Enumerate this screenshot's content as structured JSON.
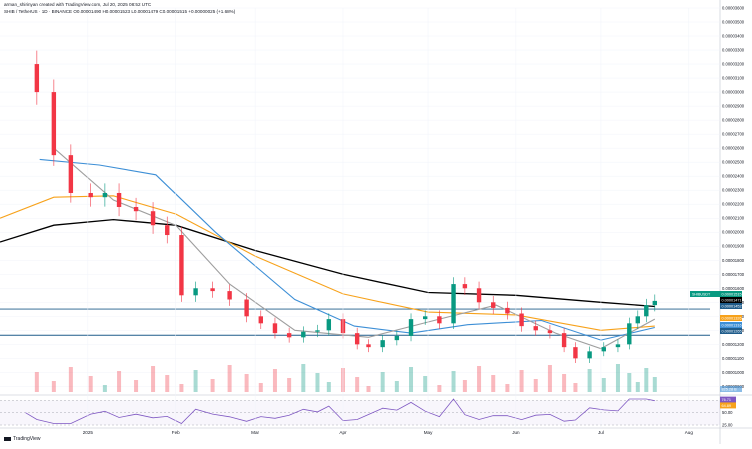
{
  "header": {
    "line1": "arman_shirinyan created with TradingView.com, Jul 20, 2025 08:52 UTC",
    "line2": "SHIB / TetherUS · 1D · BINANCE  O0.00001490 H0.00001523 L0.00001479 C0.00001515 +0.00000025 (+1.68%)"
  },
  "brand": "TradingView",
  "colors": {
    "up": "#089981",
    "down": "#F23645",
    "sma_black": "#000000",
    "sma_orange": "#F7A21B",
    "sma_blue": "#3D8FD6",
    "sma_gray": "#9E9E9E",
    "hline": "#1E5B8A",
    "rsi": "#7E57C2"
  },
  "price_axis": {
    "ticks": [
      "0.00003600",
      "0.00003500",
      "0.00003400",
      "0.00003300",
      "0.00003200",
      "0.00003100",
      "0.00003000",
      "0.00002900",
      "0.00002800",
      "0.00002700",
      "0.00002600",
      "0.00002500",
      "0.00002400",
      "0.00002300",
      "0.00002200",
      "0.00002100",
      "0.00002000",
      "0.00001900",
      "0.00001800",
      "0.00001700",
      "0.00001600",
      "0.00001500",
      "0.00001400",
      "0.00001300",
      "0.00001200",
      "0.00001100",
      "0.00001000",
      "0.00000900"
    ],
    "badges": [
      {
        "text": "SHIBUSDT",
        "value": "0.00001515",
        "color": "#089981"
      },
      {
        "text": "",
        "value": "0.00001471",
        "color": "#000000"
      },
      {
        "text": "",
        "value": "0.00001452",
        "color": "#1E5B8A"
      },
      {
        "text": "",
        "value": "0.00001326",
        "color": "#F7A21B"
      },
      {
        "text": "",
        "value": "0.00001316",
        "color": "#3D8FD6"
      },
      {
        "text": "",
        "value": "0.00001265",
        "color": "#1E5B8A"
      }
    ],
    "volume_badge": "825.28 B"
  },
  "rsi_axis": {
    "ticks": [
      "75.00",
      "50.00",
      "25.00"
    ],
    "badges": [
      {
        "value": "76.71",
        "color": "#7E57C2"
      },
      {
        "value": "64.89",
        "color": "#F7A21B"
      }
    ]
  },
  "time_axis": [
    "2025",
    "Feb",
    "Mar",
    "Apr",
    "May",
    "Jun",
    "Jul",
    "Aug"
  ],
  "chart_data": {
    "type": "candlestick",
    "symbol": "SHIB / TetherUS",
    "interval": "1D",
    "exchange": "BINANCE",
    "ohlc_last": {
      "open": 1.49e-05,
      "high": 1.523e-05,
      "low": 1.479e-05,
      "close": 1.515e-05
    },
    "y_range": [
      8.6e-06,
      3.6e-05
    ],
    "close_series": [
      {
        "date": "2024-12-10",
        "close": 3.2e-05
      },
      {
        "date": "2024-12-14",
        "close": 3e-05
      },
      {
        "date": "2024-12-20",
        "close": 2.55e-05
      },
      {
        "date": "2024-12-26",
        "close": 2.28e-05
      },
      {
        "date": "2025-01-02",
        "close": 2.25e-05
      },
      {
        "date": "2025-01-07",
        "close": 2.28e-05
      },
      {
        "date": "2025-01-12",
        "close": 2.18e-05
      },
      {
        "date": "2025-01-18",
        "close": 2.15e-05
      },
      {
        "date": "2025-01-24",
        "close": 2.05e-05
      },
      {
        "date": "2025-01-29",
        "close": 1.98e-05
      },
      {
        "date": "2025-02-03",
        "close": 1.55e-05
      },
      {
        "date": "2025-02-08",
        "close": 1.6e-05
      },
      {
        "date": "2025-02-14",
        "close": 1.58e-05
      },
      {
        "date": "2025-02-20",
        "close": 1.52e-05
      },
      {
        "date": "2025-02-26",
        "close": 1.4e-05
      },
      {
        "date": "2025-03-03",
        "close": 1.35e-05
      },
      {
        "date": "2025-03-08",
        "close": 1.28e-05
      },
      {
        "date": "2025-03-13",
        "close": 1.25e-05
      },
      {
        "date": "2025-03-18",
        "close": 1.29e-05
      },
      {
        "date": "2025-03-23",
        "close": 1.3e-05
      },
      {
        "date": "2025-03-27",
        "close": 1.38e-05
      },
      {
        "date": "2025-04-01",
        "close": 1.28e-05
      },
      {
        "date": "2025-04-06",
        "close": 1.2e-05
      },
      {
        "date": "2025-04-10",
        "close": 1.18e-05
      },
      {
        "date": "2025-04-15",
        "close": 1.23e-05
      },
      {
        "date": "2025-04-20",
        "close": 1.26e-05
      },
      {
        "date": "2025-04-25",
        "close": 1.38e-05
      },
      {
        "date": "2025-04-30",
        "close": 1.4e-05
      },
      {
        "date": "2025-05-05",
        "close": 1.35e-05
      },
      {
        "date": "2025-05-10",
        "close": 1.63e-05
      },
      {
        "date": "2025-05-14",
        "close": 1.6e-05
      },
      {
        "date": "2025-05-19",
        "close": 1.5e-05
      },
      {
        "date": "2025-05-24",
        "close": 1.46e-05
      },
      {
        "date": "2025-05-29",
        "close": 1.42e-05
      },
      {
        "date": "2025-06-03",
        "close": 1.33e-05
      },
      {
        "date": "2025-06-08",
        "close": 1.3e-05
      },
      {
        "date": "2025-06-13",
        "close": 1.28e-05
      },
      {
        "date": "2025-06-18",
        "close": 1.18e-05
      },
      {
        "date": "2025-06-22",
        "close": 1.1e-05
      },
      {
        "date": "2025-06-27",
        "close": 1.15e-05
      },
      {
        "date": "2025-07-02",
        "close": 1.18e-05
      },
      {
        "date": "2025-07-07",
        "close": 1.2e-05
      },
      {
        "date": "2025-07-11",
        "close": 1.35e-05
      },
      {
        "date": "2025-07-14",
        "close": 1.4e-05
      },
      {
        "date": "2025-07-17",
        "close": 1.48e-05
      },
      {
        "date": "2025-07-20",
        "close": 1.51e-05
      }
    ],
    "moving_averages": [
      {
        "color": "#000000",
        "points": [
          [
            "2024-12-01",
            1.93e-05
          ],
          [
            "2024-12-20",
            2.05e-05
          ],
          [
            "2025-01-10",
            2.09e-05
          ],
          [
            "2025-02-01",
            2.05e-05
          ],
          [
            "2025-03-01",
            1.87e-05
          ],
          [
            "2025-04-01",
            1.7e-05
          ],
          [
            "2025-05-01",
            1.57e-05
          ],
          [
            "2025-06-01",
            1.55e-05
          ],
          [
            "2025-07-01",
            1.5e-05
          ],
          [
            "2025-07-20",
            1.47e-05
          ]
        ]
      },
      {
        "color": "#F7A21B",
        "points": [
          [
            "2024-12-01",
            2.1e-05
          ],
          [
            "2024-12-20",
            2.25e-05
          ],
          [
            "2025-01-10",
            2.26e-05
          ],
          [
            "2025-02-01",
            2.13e-05
          ],
          [
            "2025-03-01",
            1.83e-05
          ],
          [
            "2025-04-01",
            1.56e-05
          ],
          [
            "2025-05-01",
            1.43e-05
          ],
          [
            "2025-06-01",
            1.41e-05
          ],
          [
            "2025-07-01",
            1.3e-05
          ],
          [
            "2025-07-20",
            1.33e-05
          ]
        ]
      },
      {
        "color": "#3D8FD6",
        "points": [
          [
            "2024-12-15",
            2.52e-05
          ],
          [
            "2025-01-05",
            2.48e-05
          ],
          [
            "2025-01-25",
            2.41e-05
          ],
          [
            "2025-02-15",
            2e-05
          ],
          [
            "2025-03-15",
            1.52e-05
          ],
          [
            "2025-04-05",
            1.33e-05
          ],
          [
            "2025-04-25",
            1.28e-05
          ],
          [
            "2025-05-15",
            1.34e-05
          ],
          [
            "2025-06-10",
            1.37e-05
          ],
          [
            "2025-07-01",
            1.23e-05
          ],
          [
            "2025-07-20",
            1.32e-05
          ]
        ]
      },
      {
        "color": "#9E9E9E",
        "points": [
          [
            "2024-12-20",
            2.6e-05
          ],
          [
            "2025-01-10",
            2.23e-05
          ],
          [
            "2025-02-01",
            2.05e-05
          ],
          [
            "2025-02-20",
            1.63e-05
          ],
          [
            "2025-03-15",
            1.3e-05
          ],
          [
            "2025-04-10",
            1.25e-05
          ],
          [
            "2025-05-05",
            1.38e-05
          ],
          [
            "2025-05-25",
            1.48e-05
          ],
          [
            "2025-06-15",
            1.28e-05
          ],
          [
            "2025-07-01",
            1.17e-05
          ],
          [
            "2025-07-20",
            1.38e-05
          ]
        ]
      }
    ],
    "horizontal_levels": [
      1.452e-05,
      1.265e-05
    ],
    "rsi": {
      "ylim": [
        25,
        80
      ],
      "levels": [
        75,
        50,
        25
      ],
      "last": [
        76.71,
        64.89
      ]
    }
  }
}
